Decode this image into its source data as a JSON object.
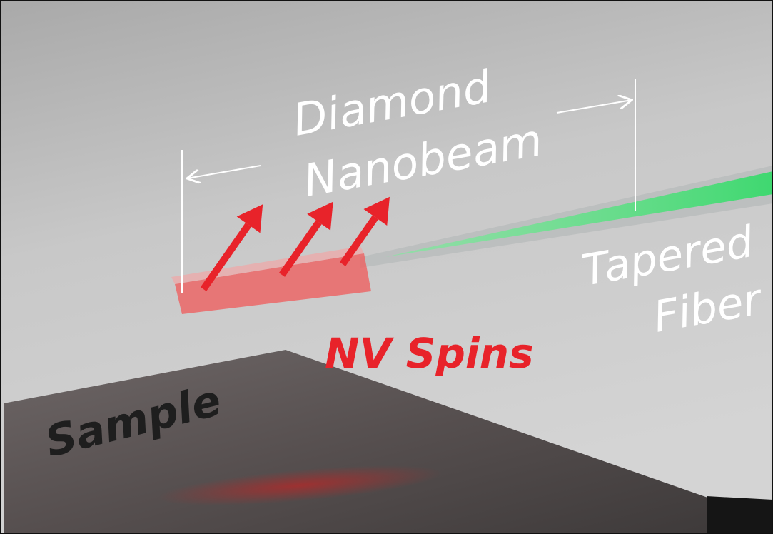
{
  "labels": {
    "diamond": "Diamond",
    "nanobeam": "Nanobeam",
    "tapered": "Tapered",
    "fiber": "Fiber",
    "nv_spins": "NV Spins",
    "sample": "Sample"
  },
  "colors": {
    "label_white": "#ffffff",
    "nv_red": "#e8232a",
    "sample_text": "#1e1e1e",
    "fiber_green": "#4be07a",
    "sample_surface": "#5a5252"
  }
}
